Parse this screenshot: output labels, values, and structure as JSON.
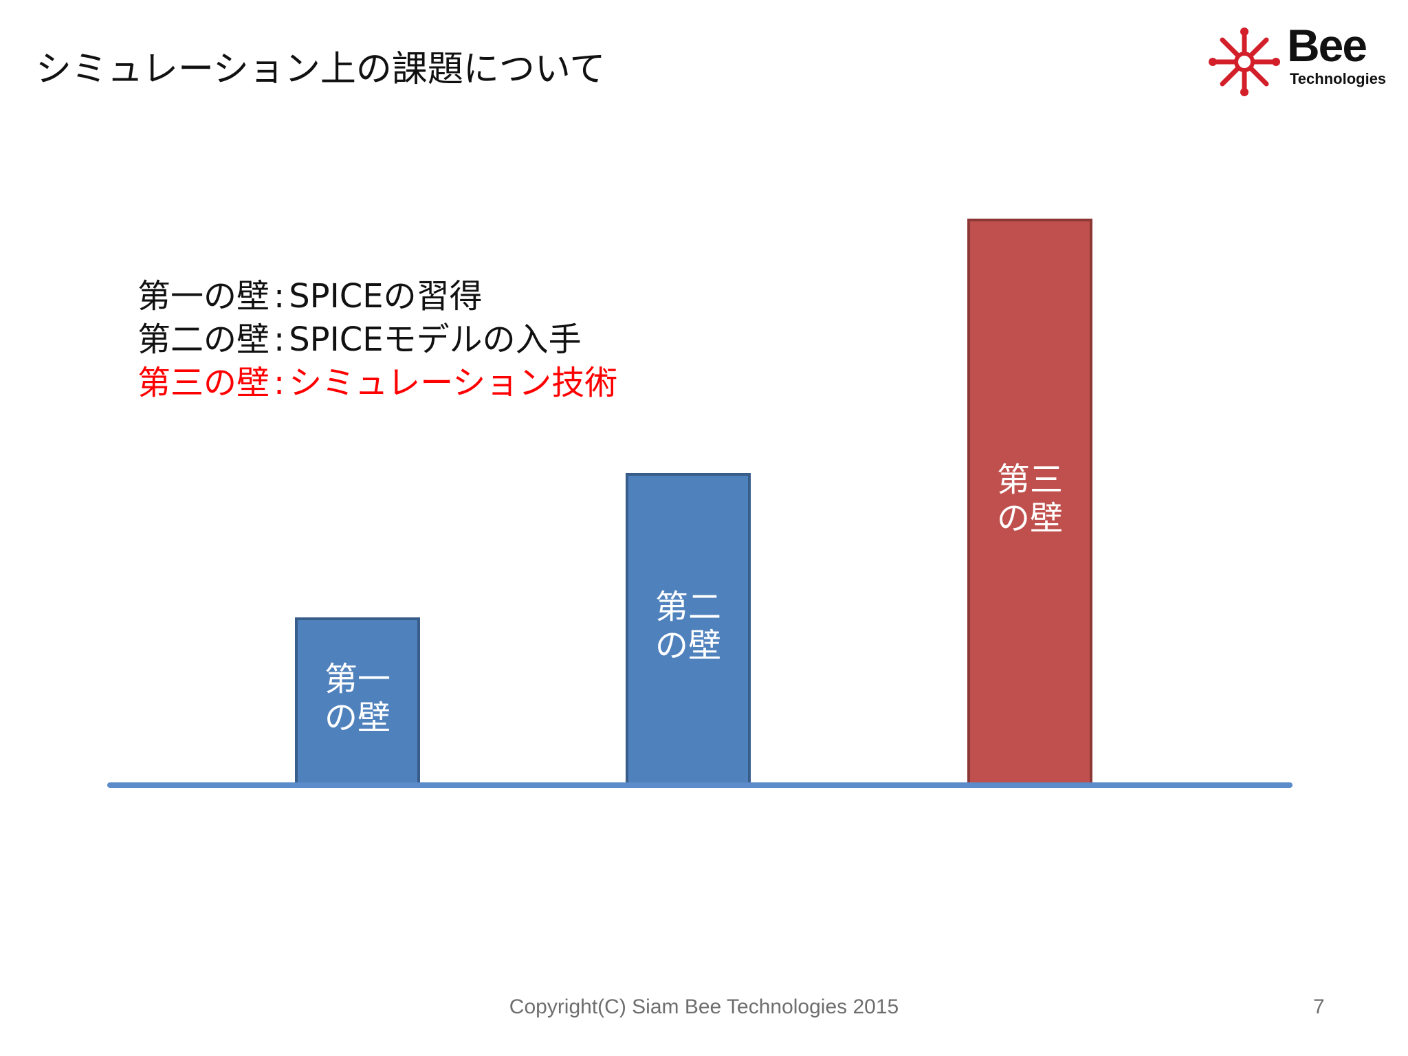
{
  "title": "シミュレーション上の課題について",
  "logo": {
    "word": "Bee",
    "sub": "Technologies"
  },
  "walls": [
    {
      "name": "第一の壁",
      "sep": ":",
      "desc": "SPICEの習得"
    },
    {
      "name": "第二の壁",
      "sep": ":",
      "desc": "SPICEモデルの入手"
    },
    {
      "name": "第三の壁",
      "sep": ":",
      "desc": "シミュレーション技術"
    }
  ],
  "chart_data": {
    "type": "bar",
    "categories": [
      "第一の壁",
      "第二の壁",
      "第三の壁"
    ],
    "values": [
      240,
      450,
      820
    ],
    "bar_labels": [
      [
        "第一",
        "の壁"
      ],
      [
        "第二",
        "の壁"
      ],
      [
        "第三",
        "の壁"
      ]
    ],
    "colors": [
      "#4f81bd",
      "#4f81bd",
      "#c0504d"
    ],
    "title": "",
    "xlabel": "",
    "ylabel": "",
    "grid": false
  },
  "colors": {
    "bar_blue": "#4f81bd",
    "bar_red": "#c0504d",
    "highlight": "#ff0000",
    "axis": "#5b8bc9"
  },
  "footer": "Copyright(C) Siam Bee Technologies 2015",
  "page_number": "7"
}
